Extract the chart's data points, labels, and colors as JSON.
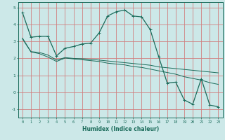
{
  "xlabel": "Humidex (Indice chaleur)",
  "background_color": "#cce8e8",
  "grid_color": "#d08080",
  "line_color": "#1a6b5a",
  "xlim": [
    -0.5,
    23.5
  ],
  "ylim": [
    -1.5,
    5.3
  ],
  "x_ticks": [
    0,
    1,
    2,
    3,
    4,
    5,
    6,
    7,
    8,
    9,
    10,
    11,
    12,
    13,
    14,
    15,
    16,
    17,
    18,
    19,
    20,
    21,
    22,
    23
  ],
  "y_ticks": [
    -1,
    0,
    1,
    2,
    3,
    4,
    5
  ],
  "series1_x": [
    0,
    1,
    2,
    3,
    4,
    5,
    6,
    7,
    8,
    9,
    10,
    11,
    12,
    13,
    14,
    15,
    16,
    17,
    18,
    19,
    20,
    21,
    22,
    23
  ],
  "series1_y": [
    4.7,
    3.25,
    3.3,
    3.3,
    2.15,
    2.6,
    2.7,
    2.85,
    2.9,
    3.5,
    4.5,
    4.75,
    4.85,
    4.5,
    4.45,
    3.7,
    2.1,
    0.55,
    0.6,
    -0.45,
    -0.7,
    0.8,
    -0.75,
    -0.85
  ],
  "series2_x": [
    0,
    1,
    2,
    3,
    4,
    5,
    6,
    7,
    8,
    9,
    10,
    11,
    12,
    13,
    14,
    15,
    16,
    17,
    18,
    19,
    20,
    21,
    22,
    23
  ],
  "series2_y": [
    3.2,
    2.4,
    2.35,
    2.2,
    1.9,
    2.05,
    2.0,
    1.98,
    1.95,
    1.9,
    1.85,
    1.8,
    1.75,
    1.7,
    1.65,
    1.6,
    1.5,
    1.45,
    1.4,
    1.35,
    1.3,
    1.25,
    1.2,
    1.15
  ],
  "series3_x": [
    0,
    1,
    2,
    3,
    4,
    5,
    6,
    7,
    8,
    9,
    10,
    11,
    12,
    13,
    14,
    15,
    16,
    17,
    18,
    19,
    20,
    21,
    22,
    23
  ],
  "series3_y": [
    3.15,
    2.38,
    2.28,
    2.08,
    1.82,
    2.02,
    1.97,
    1.92,
    1.87,
    1.82,
    1.72,
    1.67,
    1.62,
    1.52,
    1.47,
    1.37,
    1.27,
    1.17,
    1.07,
    0.92,
    0.82,
    0.72,
    0.57,
    0.47
  ]
}
